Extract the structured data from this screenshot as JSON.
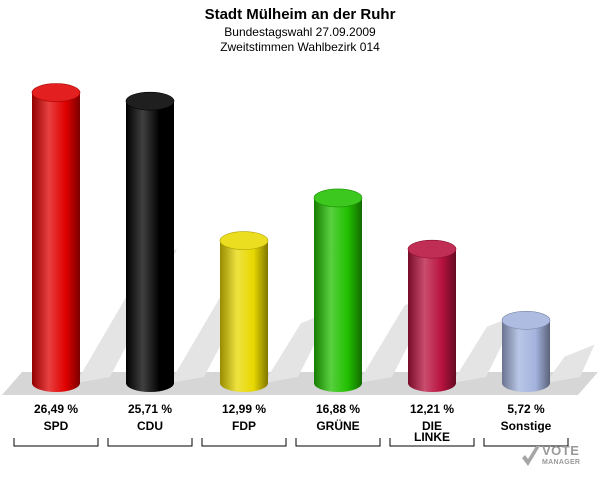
{
  "header": {
    "title": "Stadt Mülheim an der Ruhr",
    "subtitle1": "Bundestagswahl 27.09.2009",
    "subtitle2": "Zweitstimmen Wahlbezirk 014"
  },
  "chart_data": {
    "type": "bar",
    "categories": [
      "SPD",
      "CDU",
      "FDP",
      "GRÜNE",
      "DIE LINKE",
      "Sonstige"
    ],
    "values": [
      26.49,
      25.71,
      12.99,
      16.88,
      12.21,
      5.72
    ],
    "value_labels": [
      "26,49 %",
      "25,71 %",
      "12,99 %",
      "16,88 %",
      "12,21 %",
      "5,72 %"
    ],
    "colors": [
      "#e00000",
      "#000000",
      "#e8d800",
      "#22c000",
      "#b8123e",
      "#a3b3dd"
    ],
    "title": "Stadt Mülheim an der Ruhr",
    "subtitle": "Bundestagswahl 27.09.2009 / Zweitstimmen Wahlbezirk 014",
    "ylim": [
      0,
      27
    ],
    "grid": false,
    "legend": "none"
  },
  "watermark": {
    "line1": "VOTE",
    "line2": "MANAGER"
  }
}
